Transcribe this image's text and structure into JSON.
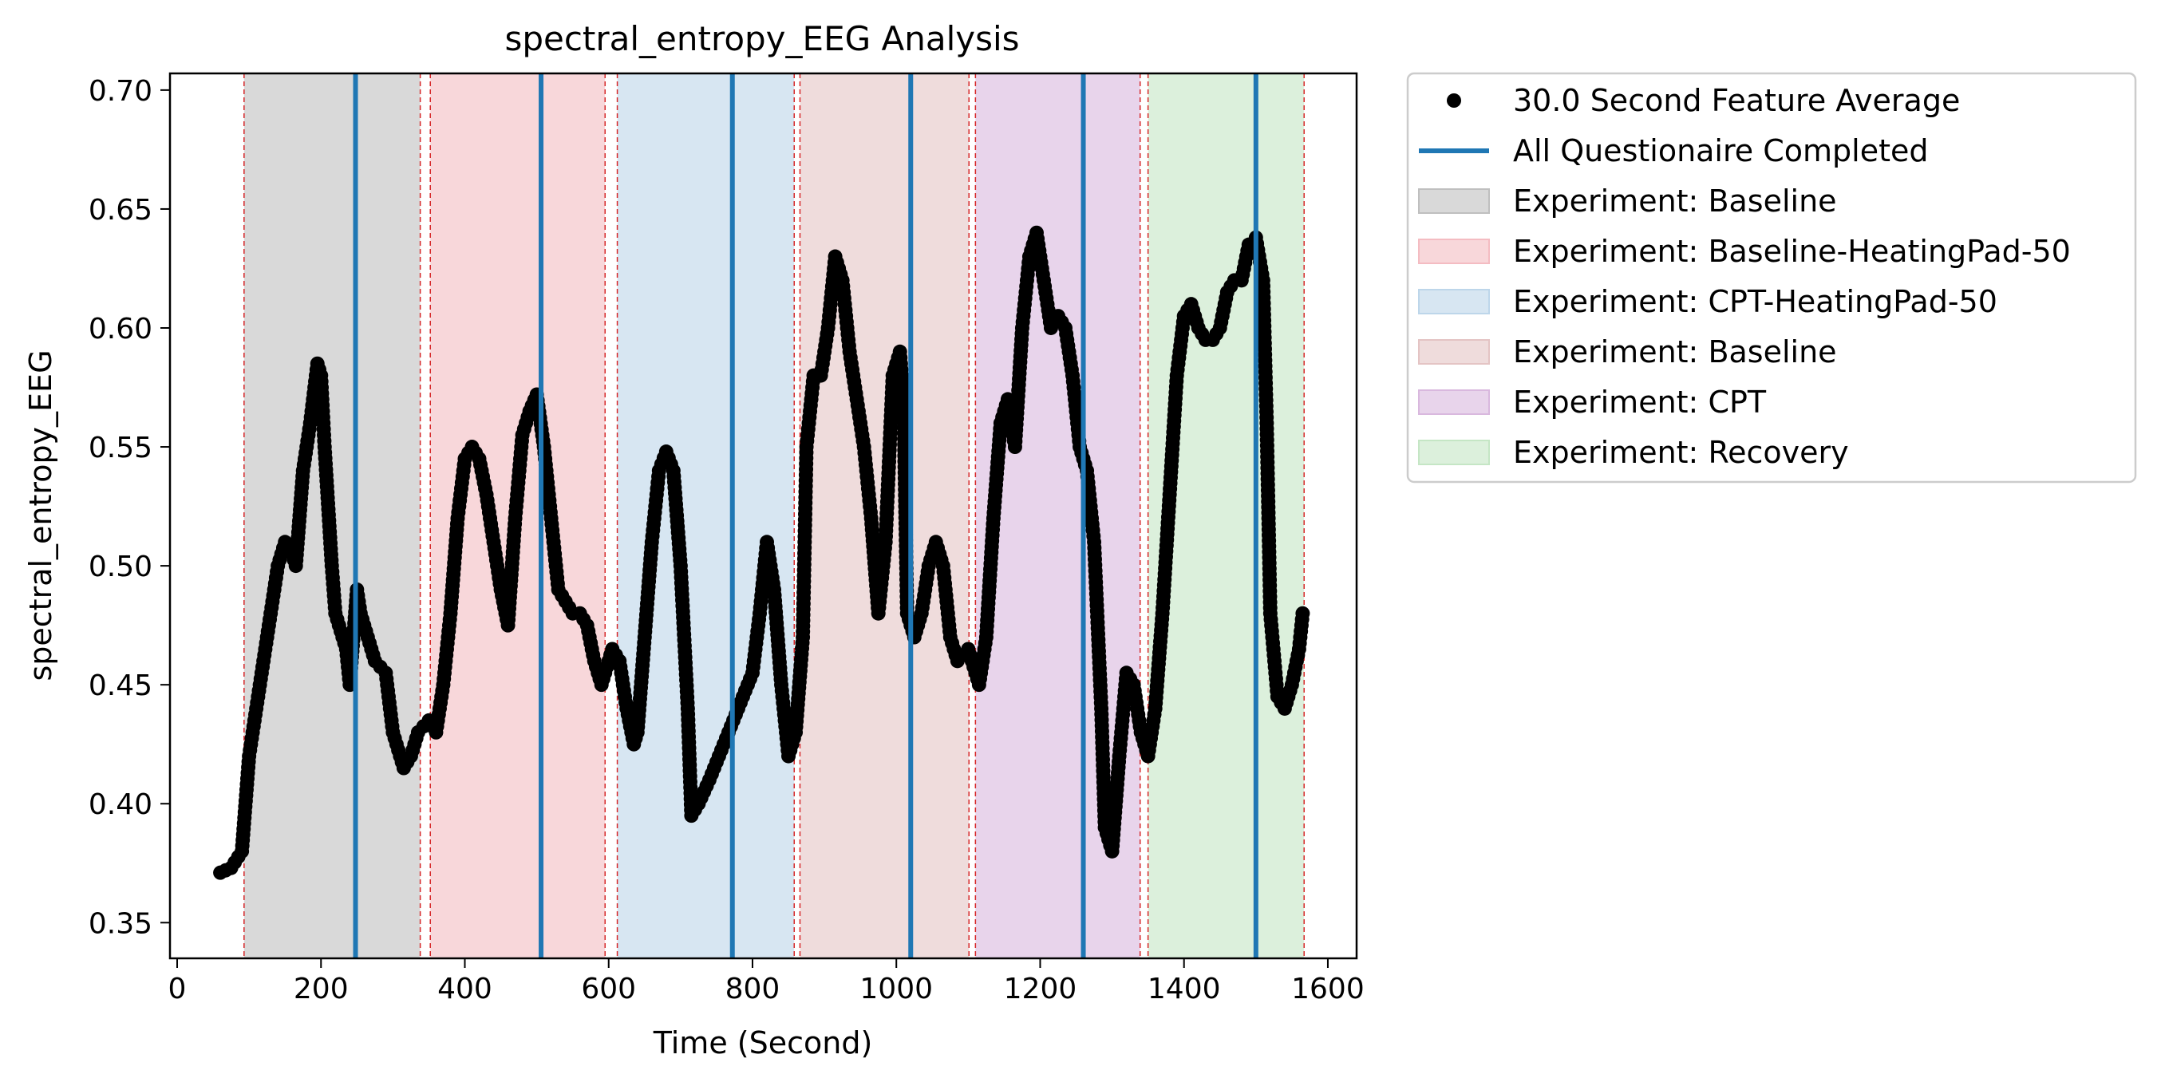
{
  "chart_data": {
    "type": "scatter",
    "title": "spectral_entropy_EEG Analysis",
    "xlabel": "Time (Second)",
    "ylabel": "spectral_entropy_EEG",
    "xlim": [
      -10,
      1640
    ],
    "ylim": [
      0.335,
      0.707
    ],
    "xticks": [
      0,
      200,
      400,
      600,
      800,
      1000,
      1200,
      1400,
      1600
    ],
    "yticks": [
      0.35,
      0.4,
      0.45,
      0.5,
      0.55,
      0.6,
      0.65,
      0.7
    ],
    "xtick_labels": [
      "0",
      "200",
      "400",
      "600",
      "800",
      "1000",
      "1200",
      "1400",
      "1600"
    ],
    "ytick_labels": [
      "0.35",
      "0.40",
      "0.45",
      "0.50",
      "0.55",
      "0.60",
      "0.65",
      "0.70"
    ],
    "grid": false,
    "legend_placement": "outside-upper-right",
    "series": [
      {
        "name": "30.0 Second Feature Average",
        "kind": "points",
        "color": "#000000",
        "points": [
          [
            60,
            0.371
          ],
          [
            75,
            0.373
          ],
          [
            90,
            0.38
          ],
          [
            100,
            0.42
          ],
          [
            110,
            0.44
          ],
          [
            120,
            0.46
          ],
          [
            130,
            0.48
          ],
          [
            140,
            0.5
          ],
          [
            150,
            0.51
          ],
          [
            160,
            0.505
          ],
          [
            165,
            0.5
          ],
          [
            175,
            0.54
          ],
          [
            185,
            0.56
          ],
          [
            195,
            0.585
          ],
          [
            200,
            0.58
          ],
          [
            205,
            0.55
          ],
          [
            215,
            0.5
          ],
          [
            220,
            0.48
          ],
          [
            235,
            0.465
          ],
          [
            240,
            0.45
          ],
          [
            250,
            0.49
          ],
          [
            255,
            0.48
          ],
          [
            265,
            0.47
          ],
          [
            275,
            0.46
          ],
          [
            290,
            0.455
          ],
          [
            300,
            0.43
          ],
          [
            315,
            0.415
          ],
          [
            325,
            0.42
          ],
          [
            335,
            0.43
          ],
          [
            350,
            0.435
          ],
          [
            360,
            0.43
          ],
          [
            370,
            0.45
          ],
          [
            380,
            0.48
          ],
          [
            390,
            0.52
          ],
          [
            400,
            0.545
          ],
          [
            410,
            0.55
          ],
          [
            420,
            0.545
          ],
          [
            430,
            0.53
          ],
          [
            440,
            0.51
          ],
          [
            450,
            0.49
          ],
          [
            460,
            0.475
          ],
          [
            470,
            0.52
          ],
          [
            480,
            0.555
          ],
          [
            490,
            0.565
          ],
          [
            500,
            0.572
          ],
          [
            510,
            0.55
          ],
          [
            520,
            0.52
          ],
          [
            530,
            0.49
          ],
          [
            550,
            0.48
          ],
          [
            560,
            0.48
          ],
          [
            570,
            0.475
          ],
          [
            580,
            0.46
          ],
          [
            590,
            0.45
          ],
          [
            600,
            0.46
          ],
          [
            605,
            0.465
          ],
          [
            615,
            0.46
          ],
          [
            625,
            0.44
          ],
          [
            635,
            0.425
          ],
          [
            640,
            0.43
          ],
          [
            650,
            0.47
          ],
          [
            660,
            0.51
          ],
          [
            670,
            0.54
          ],
          [
            680,
            0.548
          ],
          [
            690,
            0.54
          ],
          [
            700,
            0.5
          ],
          [
            710,
            0.44
          ],
          [
            715,
            0.395
          ],
          [
            725,
            0.4
          ],
          [
            740,
            0.41
          ],
          [
            760,
            0.425
          ],
          [
            780,
            0.44
          ],
          [
            800,
            0.455
          ],
          [
            810,
            0.48
          ],
          [
            820,
            0.51
          ],
          [
            830,
            0.49
          ],
          [
            840,
            0.45
          ],
          [
            850,
            0.42
          ],
          [
            860,
            0.43
          ],
          [
            870,
            0.47
          ],
          [
            875,
            0.55
          ],
          [
            885,
            0.58
          ],
          [
            895,
            0.58
          ],
          [
            905,
            0.6
          ],
          [
            915,
            0.63
          ],
          [
            925,
            0.62
          ],
          [
            935,
            0.59
          ],
          [
            945,
            0.57
          ],
          [
            955,
            0.55
          ],
          [
            965,
            0.52
          ],
          [
            975,
            0.48
          ],
          [
            985,
            0.51
          ],
          [
            995,
            0.58
          ],
          [
            1005,
            0.59
          ],
          [
            1010,
            0.57
          ],
          [
            1015,
            0.48
          ],
          [
            1025,
            0.47
          ],
          [
            1035,
            0.48
          ],
          [
            1045,
            0.5
          ],
          [
            1055,
            0.51
          ],
          [
            1065,
            0.5
          ],
          [
            1075,
            0.47
          ],
          [
            1085,
            0.46
          ],
          [
            1100,
            0.465
          ],
          [
            1115,
            0.45
          ],
          [
            1125,
            0.47
          ],
          [
            1135,
            0.52
          ],
          [
            1145,
            0.56
          ],
          [
            1155,
            0.57
          ],
          [
            1165,
            0.55
          ],
          [
            1175,
            0.6
          ],
          [
            1185,
            0.63
          ],
          [
            1195,
            0.64
          ],
          [
            1205,
            0.62
          ],
          [
            1215,
            0.6
          ],
          [
            1225,
            0.605
          ],
          [
            1235,
            0.6
          ],
          [
            1245,
            0.58
          ],
          [
            1255,
            0.55
          ],
          [
            1265,
            0.54
          ],
          [
            1275,
            0.51
          ],
          [
            1285,
            0.44
          ],
          [
            1290,
            0.39
          ],
          [
            1300,
            0.38
          ],
          [
            1310,
            0.42
          ],
          [
            1320,
            0.455
          ],
          [
            1330,
            0.45
          ],
          [
            1340,
            0.43
          ],
          [
            1350,
            0.42
          ],
          [
            1360,
            0.44
          ],
          [
            1370,
            0.48
          ],
          [
            1380,
            0.53
          ],
          [
            1390,
            0.58
          ],
          [
            1400,
            0.605
          ],
          [
            1410,
            0.61
          ],
          [
            1420,
            0.6
          ],
          [
            1430,
            0.595
          ],
          [
            1440,
            0.595
          ],
          [
            1450,
            0.6
          ],
          [
            1460,
            0.615
          ],
          [
            1470,
            0.62
          ],
          [
            1480,
            0.62
          ],
          [
            1490,
            0.635
          ],
          [
            1500,
            0.638
          ],
          [
            1510,
            0.62
          ],
          [
            1515,
            0.56
          ],
          [
            1520,
            0.48
          ],
          [
            1530,
            0.445
          ],
          [
            1540,
            0.44
          ],
          [
            1550,
            0.45
          ],
          [
            1560,
            0.465
          ],
          [
            1565,
            0.48
          ]
        ]
      },
      {
        "name": "All Questionaire Completed",
        "kind": "vlines",
        "color": "#1f77b4",
        "x": [
          248,
          506,
          772,
          1020,
          1260,
          1500
        ]
      }
    ],
    "spans": [
      {
        "name": "Experiment: Baseline",
        "color": "#bfbfbf",
        "x0": 93,
        "x1": 338
      },
      {
        "name": "Experiment: Baseline-HeatingPad-50",
        "color": "#f4bcc2",
        "x0": 352,
        "x1": 595
      },
      {
        "name": "Experiment: CPT-HeatingPad-50",
        "color": "#bdd6ea",
        "x0": 612,
        "x1": 858
      },
      {
        "name": "Experiment: Baseline",
        "color": "#e4c4c4",
        "x0": 866,
        "x1": 1101
      },
      {
        "name": "Experiment: CPT",
        "color": "#d9b8de",
        "x0": 1110,
        "x1": 1339
      },
      {
        "name": "Experiment: Recovery",
        "color": "#c5e6c5",
        "x0": 1350,
        "x1": 1567
      }
    ],
    "boundary_color": "#d62728",
    "legend": [
      {
        "label": "30.0 Second Feature Average",
        "kind": "point",
        "color": "#000000"
      },
      {
        "label": "All Questionaire Completed",
        "kind": "line",
        "color": "#1f77b4"
      },
      {
        "label": "Experiment: Baseline",
        "kind": "patch",
        "color": "#bfbfbf"
      },
      {
        "label": "Experiment: Baseline-HeatingPad-50",
        "kind": "patch",
        "color": "#f4bcc2"
      },
      {
        "label": "Experiment: CPT-HeatingPad-50",
        "kind": "patch",
        "color": "#bdd6ea"
      },
      {
        "label": "Experiment: Baseline",
        "kind": "patch",
        "color": "#e4c4c4"
      },
      {
        "label": "Experiment: CPT",
        "kind": "patch",
        "color": "#d9b8de"
      },
      {
        "label": "Experiment: Recovery",
        "kind": "patch",
        "color": "#c5e6c5"
      }
    ]
  }
}
